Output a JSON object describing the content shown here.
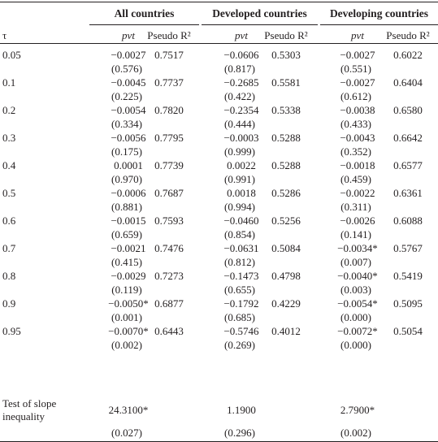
{
  "groups": [
    "All countries",
    "Developed countries",
    "Developing countries"
  ],
  "header": {
    "tau": "τ",
    "pvt": "pvt",
    "pseudo": "Pseudo R²"
  },
  "rows": [
    {
      "tau": "0.05",
      "a_coef": "−0.0027",
      "a_p": "(0.576)",
      "a_r2": "0.7517",
      "b_coef": "−0.0606",
      "b_p": "(0.817)",
      "b_r2": "0.5303",
      "c_coef": "−0.0027",
      "c_p": "(0.551)",
      "c_r2": "0.6022"
    },
    {
      "tau": "0.1",
      "a_coef": "−0.0045",
      "a_p": "(0.225)",
      "a_r2": "0.7737",
      "b_coef": "−0.2685",
      "b_p": "(0.422)",
      "b_r2": "0.5581",
      "c_coef": "−0.0027",
      "c_p": "(0.612)",
      "c_r2": "0.6404"
    },
    {
      "tau": "0.2",
      "a_coef": "−0.0054",
      "a_p": "(0.334)",
      "a_r2": "0.7820",
      "b_coef": "−0.2354",
      "b_p": "(0.444)",
      "b_r2": "0.5338",
      "c_coef": "−0.0038",
      "c_p": "(0.433)",
      "c_r2": "0.6580"
    },
    {
      "tau": "0.3",
      "a_coef": "−0.0056",
      "a_p": "(0.175)",
      "a_r2": "0.7795",
      "b_coef": "−0.0003",
      "b_p": "(0.999)",
      "b_r2": "0.5288",
      "c_coef": "−0.0043",
      "c_p": "(0.352)",
      "c_r2": "0.6642"
    },
    {
      "tau": "0.4",
      "a_coef": "0.0001",
      "a_p": "(0.970)",
      "a_r2": "0.7739",
      "b_coef": "0.0022",
      "b_p": "(0.991)",
      "b_r2": "0.5288",
      "c_coef": "−0.0018",
      "c_p": "(0.459)",
      "c_r2": "0.6577"
    },
    {
      "tau": "0.5",
      "a_coef": "−0.0006",
      "a_p": "(0.881)",
      "a_r2": "0.7687",
      "b_coef": "0.0018",
      "b_p": "(0.994)",
      "b_r2": "0.5286",
      "c_coef": "−0.0022",
      "c_p": "(0.311)",
      "c_r2": "0.6361"
    },
    {
      "tau": "0.6",
      "a_coef": "−0.0015",
      "a_p": "(0.659)",
      "a_r2": "0.7593",
      "b_coef": "−0.0460",
      "b_p": "(0.854)",
      "b_r2": "0.5256",
      "c_coef": "−0.0026",
      "c_p": "(0.141)",
      "c_r2": "0.6088"
    },
    {
      "tau": "0.7",
      "a_coef": "−0.0021",
      "a_p": "(0.415)",
      "a_r2": "0.7476",
      "b_coef": "−0.0631",
      "b_p": "(0.812)",
      "b_r2": "0.5084",
      "c_coef": "−0.0034*",
      "c_p": "(0.007)",
      "c_r2": "0.5767"
    },
    {
      "tau": "0.8",
      "a_coef": "−0.0029",
      "a_p": "(0.119)",
      "a_r2": "0.7273",
      "b_coef": "−0.1473",
      "b_p": "(0.655)",
      "b_r2": "0.4798",
      "c_coef": "−0.0040*",
      "c_p": "(0.003)",
      "c_r2": "0.5419"
    },
    {
      "tau": "0.9",
      "a_coef": "−0.0050*",
      "a_p": "(0.001)",
      "a_r2": "0.6877",
      "b_coef": "−0.1792",
      "b_p": "(0.685)",
      "b_r2": "0.4229",
      "c_coef": "−0.0054*",
      "c_p": "(0.000)",
      "c_r2": "0.5095"
    },
    {
      "tau": "0.95",
      "a_coef": "−0.0070*",
      "a_p": "(0.002)",
      "a_r2": "0.6443",
      "b_coef": "−0.5746",
      "b_p": "(0.269)",
      "b_r2": "0.4012",
      "c_coef": "−0.0072*",
      "c_p": "(0.000)",
      "c_r2": "0.5054"
    }
  ],
  "slope": {
    "label_line1": "Test of slope",
    "label_line2": "inequality",
    "a_stat": "24.3100*",
    "a_p": "(0.027)",
    "b_stat": "1.1900",
    "b_p": "(0.296)",
    "c_stat": "2.7900*",
    "c_p": "(0.002)"
  }
}
